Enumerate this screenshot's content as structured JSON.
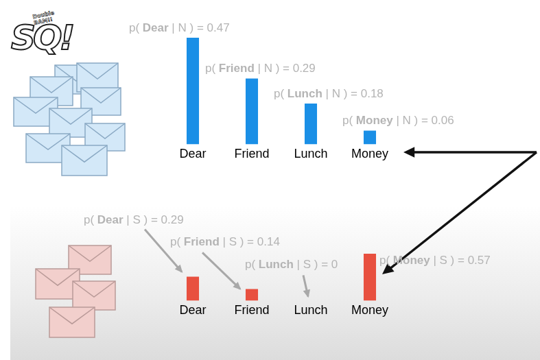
{
  "chart_data": [
    {
      "type": "bar",
      "categories": [
        "Dear",
        "Friend",
        "Lunch",
        "Money"
      ],
      "values": [
        0.47,
        0.29,
        0.18,
        0.06
      ],
      "value_labels": [
        "p( Dear | N ) = 0.47",
        "p( Friend | N ) = 0.29",
        "p( Lunch | N ) = 0.18",
        "p( Money | N ) = 0.06"
      ],
      "data_labels": true,
      "color": "#1a8fe6",
      "ylim": [
        0,
        0.47
      ],
      "grid": false,
      "tick_labels": "x"
    },
    {
      "type": "bar",
      "categories": [
        "Dear",
        "Friend",
        "Lunch",
        "Money"
      ],
      "values": [
        0.29,
        0.14,
        0,
        0.57
      ],
      "value_labels": [
        "p( Dear | S ) = 0.29",
        "p( Friend | S ) = 0.14",
        "p( Lunch | S ) = 0",
        "p( Money | S ) = 0.57"
      ],
      "data_labels": true,
      "color": "#e8503f",
      "ylim": [
        0,
        0.57
      ],
      "grid": false,
      "tick_labels": "x"
    }
  ],
  "logo": {
    "title": "SQ!",
    "subtitle": "Double BAM!!"
  }
}
